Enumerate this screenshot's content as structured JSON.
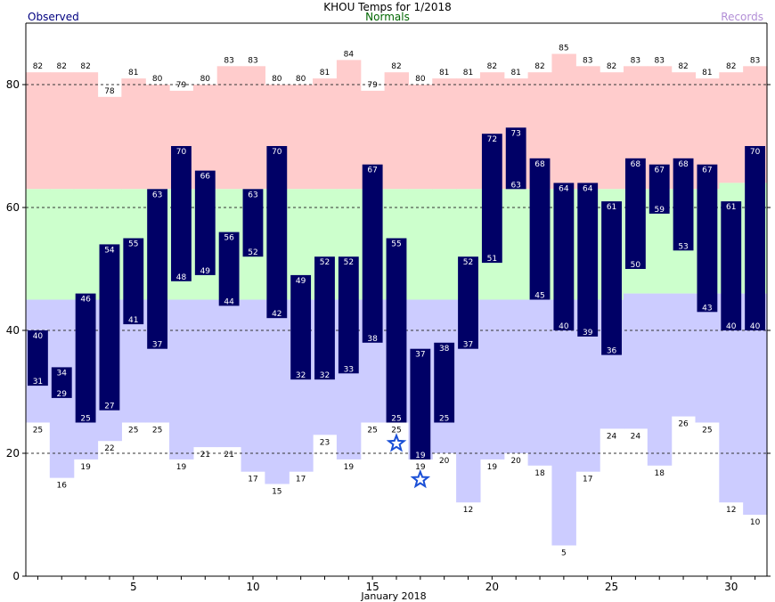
{
  "chart_data": {
    "type": "bar",
    "title": "KHOU Temps for 1/2018",
    "xlabel": "January 2018",
    "ylabel": "",
    "legend": {
      "observed": "Observed",
      "normals": "Normals",
      "records": "Records"
    },
    "colors": {
      "observed_fill": "#000066",
      "observed_label": "#000080",
      "normals_label": "#006600",
      "records_label": "#b28ed6",
      "record_high_band": "#ffcccc",
      "normal_band": "#ccffcc",
      "record_low_band": "#ccccff",
      "marker": "#1a4fd6"
    },
    "days": [
      1,
      2,
      3,
      4,
      5,
      6,
      7,
      8,
      9,
      10,
      11,
      12,
      13,
      14,
      15,
      16,
      17,
      18,
      19,
      20,
      21,
      22,
      23,
      24,
      25,
      26,
      27,
      28,
      29,
      30,
      31
    ],
    "xticks": [
      5,
      10,
      15,
      20,
      25,
      30
    ],
    "yticks": [
      0,
      20,
      40,
      60,
      80
    ],
    "ylim": [
      0,
      90
    ],
    "grid": "dashed at 20, 40, 60, 80",
    "series": [
      {
        "name": "Observed High",
        "values": [
          40,
          34,
          46,
          54,
          55,
          63,
          70,
          66,
          56,
          63,
          70,
          49,
          52,
          52,
          67,
          55,
          37,
          38,
          52,
          72,
          73,
          68,
          64,
          64,
          61,
          68,
          67,
          68,
          67,
          61,
          70
        ]
      },
      {
        "name": "Observed Low",
        "values": [
          31,
          29,
          25,
          27,
          41,
          37,
          48,
          49,
          44,
          52,
          42,
          32,
          32,
          33,
          38,
          25,
          19,
          25,
          37,
          51,
          63,
          45,
          40,
          39,
          36,
          50,
          59,
          53,
          43,
          40,
          40
        ]
      },
      {
        "name": "Record High",
        "values": [
          82,
          82,
          82,
          78,
          81,
          80,
          79,
          80,
          83,
          83,
          80,
          80,
          81,
          84,
          79,
          82,
          80,
          81,
          81,
          82,
          81,
          82,
          85,
          83,
          82,
          83,
          83,
          82,
          81,
          82,
          83
        ]
      },
      {
        "name": "Record Low",
        "values": [
          25,
          16,
          19,
          22,
          25,
          25,
          19,
          21,
          21,
          17,
          15,
          17,
          23,
          19,
          25,
          25,
          19,
          20,
          12,
          19,
          20,
          18,
          5,
          17,
          24,
          24,
          18,
          26,
          25,
          12,
          10
        ]
      },
      {
        "name": "Normal High",
        "values": [
          63,
          63,
          63,
          63,
          63,
          63,
          63,
          63,
          63,
          63,
          63,
          63,
          63,
          63,
          63,
          63,
          63,
          63,
          63,
          63,
          63,
          63,
          63,
          63,
          63,
          63,
          63,
          63,
          63,
          64,
          64
        ]
      },
      {
        "name": "Normal Low",
        "values": [
          45,
          45,
          45,
          45,
          45,
          45,
          45,
          45,
          45,
          45,
          45,
          45,
          45,
          45,
          45,
          45,
          45,
          45,
          45,
          45,
          45,
          45,
          45,
          45,
          45,
          46,
          46,
          46,
          46,
          46,
          46
        ]
      }
    ],
    "markers": [
      {
        "day": 16,
        "value": 21.6
      },
      {
        "day": 17,
        "value": 15.7
      }
    ]
  }
}
